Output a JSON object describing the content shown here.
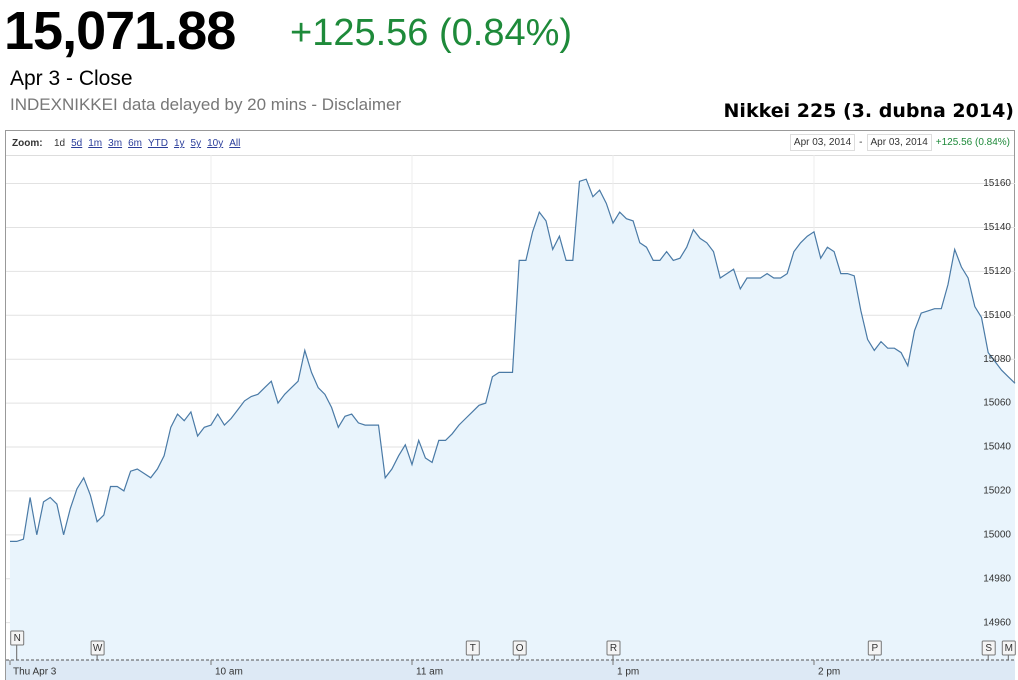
{
  "header": {
    "price": "15,071.88",
    "change": "+125.56 (0.84%)",
    "status": "Apr 3 - Close",
    "disclaimer": "INDEXNIKKEI data delayed by 20 mins - Disclaimer"
  },
  "toolbar": {
    "zoom_label": "Zoom:",
    "ranges": [
      "1d",
      "5d",
      "1m",
      "3m",
      "6m",
      "YTD",
      "1y",
      "5y",
      "10y",
      "All"
    ],
    "date_from": "Apr 03, 2014",
    "separator": "-",
    "date_to": "Apr 03, 2014",
    "change": "+125.56 (0.84%)"
  },
  "chart_data": {
    "type": "area",
    "title": "Nikkei 225 (3. dubna 2014)",
    "color": "#4a7aa6",
    "fill": "#e9f4fc",
    "x": [
      0,
      2,
      4,
      6,
      8,
      10,
      12,
      14,
      16,
      18,
      20,
      22,
      24,
      26,
      28,
      30,
      32,
      34,
      36,
      38,
      40,
      42,
      44,
      46,
      48,
      50,
      52,
      54,
      56,
      58,
      60,
      62,
      64,
      66,
      68,
      70,
      72,
      74,
      76,
      78,
      80,
      82,
      84,
      86,
      88,
      90,
      92,
      94,
      96,
      98,
      100,
      102,
      104,
      106,
      108,
      110,
      112,
      114,
      116,
      118,
      120,
      122,
      124,
      126,
      128,
      130,
      132,
      134,
      136,
      138,
      140,
      142,
      144,
      146,
      148,
      150,
      152,
      154,
      156,
      158,
      160,
      162,
      164,
      166,
      168,
      170,
      172,
      174,
      176,
      178,
      180,
      182,
      184,
      186,
      188,
      190,
      192,
      194,
      196,
      198,
      200,
      202,
      204,
      206,
      208,
      210,
      212,
      214,
      216,
      218,
      220,
      222,
      224,
      226,
      228,
      230,
      232,
      234,
      236,
      238,
      240,
      242,
      244,
      246,
      248,
      250,
      252,
      254,
      256,
      258,
      260,
      262,
      264,
      266,
      268,
      270,
      272,
      274,
      276,
      278,
      280,
      282,
      284,
      286,
      288,
      290,
      292,
      294,
      296,
      298,
      300
    ],
    "values": [
      14997,
      14997,
      14998,
      15017,
      15000,
      15015,
      15017,
      15014,
      15000,
      15012,
      15021,
      15026,
      15018,
      15006,
      15009,
      15022,
      15022,
      15020,
      15029,
      15030,
      15028,
      15026,
      15030,
      15036,
      15049,
      15055,
      15052,
      15056,
      15045,
      15049,
      15050,
      15055,
      15050,
      15053,
      15057,
      15061,
      15063,
      15064,
      15067,
      15070,
      15060,
      15064,
      15067,
      15070,
      15084,
      15074,
      15067,
      15064,
      15058,
      15049,
      15054,
      15055,
      15051,
      15050,
      15050,
      15050,
      15026,
      15030,
      15036,
      15041,
      15032,
      15043,
      15035,
      15033,
      15043,
      15043,
      15046,
      15050,
      15053,
      15056,
      15059,
      15060,
      15072,
      15074,
      15074,
      15074,
      15125,
      15125,
      15138,
      15147,
      15143,
      15130,
      15136,
      15125,
      15125,
      15161,
      15162,
      15154,
      15157,
      15151,
      15142,
      15147,
      15144,
      15143,
      15133,
      15131,
      15125,
      15125,
      15129,
      15125,
      15126,
      15131,
      15139,
      15135,
      15133,
      15129,
      15117,
      15119,
      15121,
      15112,
      15117,
      15117,
      15117,
      15119,
      15117,
      15117,
      15119,
      15129,
      15133,
      15136,
      15138,
      15126,
      15131,
      15129,
      15119,
      15119,
      15118,
      15102,
      15089,
      15084,
      15088,
      15085,
      15085,
      15083,
      15077,
      15093,
      15101,
      15102,
      15103,
      15103,
      15114,
      15130,
      15122,
      15117,
      15104,
      15099,
      15083,
      15079,
      15075,
      15072,
      15069
    ],
    "xlim": [
      0,
      300
    ],
    "xticks": [
      {
        "value": 0,
        "label": "Thu Apr 3"
      },
      {
        "value": 60,
        "label": "10 am"
      },
      {
        "value": 120,
        "label": "11 am"
      },
      {
        "value": 180,
        "label": "1 pm"
      },
      {
        "value": 240,
        "label": "2 pm"
      }
    ],
    "ylim": [
      14943,
      15173
    ],
    "yticks": [
      14960,
      14980,
      15000,
      15020,
      15040,
      15060,
      15080,
      15100,
      15120,
      15140,
      15160
    ],
    "grid": true,
    "flags": [
      {
        "label": "N",
        "x": 2
      },
      {
        "label": "W",
        "x": 26
      },
      {
        "label": "T",
        "x": 138
      },
      {
        "label": "O",
        "x": 152
      },
      {
        "label": "R",
        "x": 180
      },
      {
        "label": "P",
        "x": 258
      },
      {
        "label": "S",
        "x": 292
      },
      {
        "label": "M",
        "x": 298
      }
    ]
  }
}
